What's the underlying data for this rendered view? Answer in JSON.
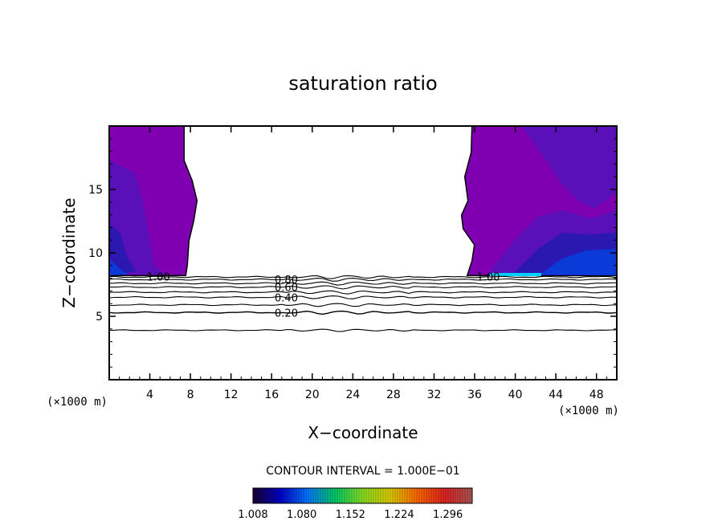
{
  "chart_data": {
    "type": "contour",
    "title": "saturation ratio",
    "xlabel": "X−coordinate",
    "ylabel": "Z−coordinate",
    "x_unit": "(×1000 m)",
    "y_unit": "(×1000 m)",
    "xlim": [
      0,
      50
    ],
    "ylim": [
      0,
      20
    ],
    "x_ticks": [
      4,
      8,
      12,
      16,
      20,
      24,
      28,
      32,
      36,
      40,
      44,
      48
    ],
    "y_ticks": [
      5,
      10,
      15
    ],
    "contour_interval_text": "CONTOUR INTERVAL = 1.000E−01",
    "contour_lines": [
      {
        "value": 0.2,
        "label": "0.20",
        "z": 5.3
      },
      {
        "value": 0.3,
        "label": "",
        "z": 5.9
      },
      {
        "value": 0.4,
        "label": "0.40",
        "z": 6.5
      },
      {
        "value": 0.5,
        "label": "",
        "z": 6.9
      },
      {
        "value": 0.6,
        "label": "0.60",
        "z": 7.3
      },
      {
        "value": 0.7,
        "label": "",
        "z": 7.6
      },
      {
        "value": 0.8,
        "label": "0.80",
        "z": 7.9
      },
      {
        "value": 0.9,
        "label": "",
        "z": 8.1
      }
    ],
    "lower_contour": {
      "value": 0.1,
      "z": 3.9
    },
    "supersaturated_regions": [
      {
        "name": "left",
        "x_range": [
          0,
          7.7
        ],
        "z_range": [
          8.2,
          20
        ],
        "boundary_label": "1.00"
      },
      {
        "name": "right",
        "x_range": [
          35.5,
          50
        ],
        "z_range": [
          8.2,
          20
        ],
        "boundary_label": "1.00"
      }
    ],
    "colorbar": {
      "min": 1.008,
      "max": 1.332,
      "tick_labels": [
        "1.008",
        "1.080",
        "1.152",
        "1.224",
        "1.296"
      ],
      "colors": [
        "#1a0030",
        "#0000cc",
        "#0077ff",
        "#00cc66",
        "#88dd22",
        "#ddcc00",
        "#ff6600",
        "#dd2222",
        "#aa5555"
      ]
    },
    "fill_colors": {
      "base": "#7f00b0",
      "mid": "#5a10b8",
      "deep": "#2a18b0",
      "peak": "#0a3ad8",
      "cyan": "#00d0ff"
    }
  }
}
